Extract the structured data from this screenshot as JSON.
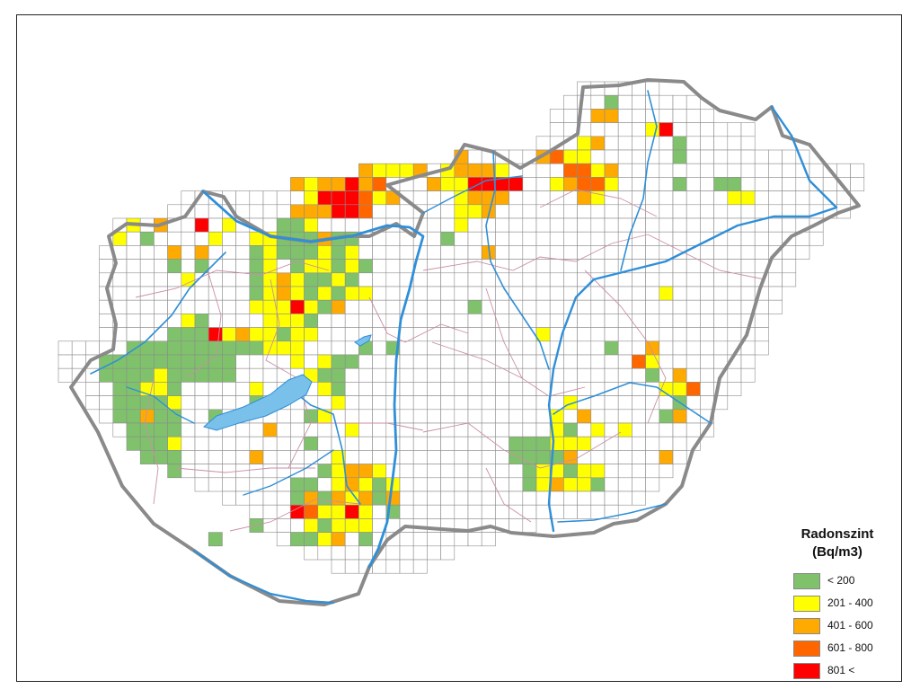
{
  "legend": {
    "title_line1": "Radonszint",
    "title_line2": "(Bq/m3)",
    "classes": [
      {
        "key": "c1",
        "label": "< 200",
        "color": "#7fc26b"
      },
      {
        "key": "c2",
        "label": "201 - 400",
        "color": "#ffff00"
      },
      {
        "key": "c3",
        "label": "401 - 600",
        "color": "#ffaa00"
      },
      {
        "key": "c4",
        "label": "601 - 800",
        "color": "#ff6600"
      },
      {
        "key": "c5",
        "label": "801 <",
        "color": "#ff0000"
      }
    ]
  },
  "map": {
    "border_color": "#8a8a8a",
    "river_color": "#2f8fd8",
    "lake_color": "#79c0ea",
    "grid_color": "#8c8c8c",
    "county_color": "#c98fa6"
  }
}
